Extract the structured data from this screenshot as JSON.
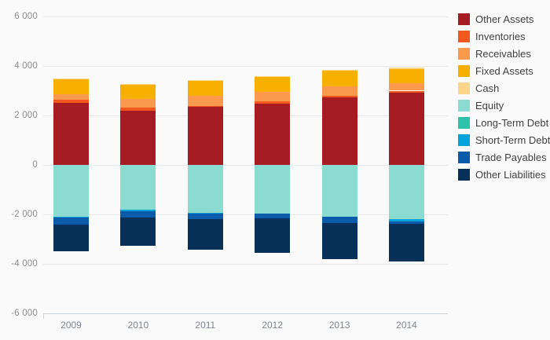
{
  "chart_data": {
    "type": "bar",
    "stacked": true,
    "orientation": "vertical",
    "title": "",
    "xlabel": "",
    "ylabel": "",
    "categories": [
      "2009",
      "2010",
      "2011",
      "2012",
      "2013",
      "2014"
    ],
    "series": [
      {
        "name": "Other Assets",
        "color": "#a71c22",
        "values": [
          2500,
          2190,
          2340,
          2480,
          2740,
          2920
        ]
      },
      {
        "name": "Inventories",
        "color": "#f3591f",
        "values": [
          130,
          130,
          50,
          80,
          50,
          80
        ]
      },
      {
        "name": "Receivables",
        "color": "#fb9a4d",
        "values": [
          220,
          340,
          390,
          390,
          390,
          310
        ]
      },
      {
        "name": "Fixed Assets",
        "color": "#f8b000",
        "values": [
          600,
          600,
          630,
          620,
          630,
          570
        ]
      },
      {
        "name": "Cash",
        "color": "#fbd589",
        "values": [
          40,
          20,
          30,
          20,
          30,
          60
        ]
      },
      {
        "name": "Equity",
        "color": "#8cdbd1",
        "values": [
          -2080,
          -1800,
          -1930,
          -1960,
          -2090,
          -2180
        ]
      },
      {
        "name": "Long-Term Debt",
        "color": "#2cc3a9",
        "values": [
          -20,
          -10,
          -10,
          0,
          0,
          -10
        ]
      },
      {
        "name": "Short-Term Debt",
        "color": "#00a3dc",
        "values": [
          -40,
          -60,
          -30,
          -20,
          -20,
          -90
        ]
      },
      {
        "name": "Trade Payables",
        "color": "#0a5cab",
        "values": [
          -280,
          -260,
          -210,
          -190,
          -250,
          -90
        ]
      },
      {
        "name": "Other Liabilities",
        "color": "#073158",
        "values": [
          -1070,
          -1130,
          -1240,
          -1390,
          -1440,
          -1520
        ]
      }
    ],
    "ylim": [
      -6000,
      6000
    ],
    "yticks": [
      6000,
      4000,
      2000,
      0,
      -2000,
      -4000,
      -6000
    ],
    "ytick_labels": [
      "6 000",
      "4 000",
      "2 000",
      "0",
      "-2 000",
      "-4 000",
      "-6 000"
    ],
    "grid": true,
    "legend_position": "right"
  }
}
